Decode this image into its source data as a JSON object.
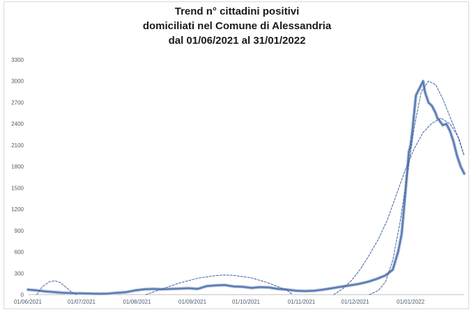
{
  "chart_data": {
    "type": "line",
    "title_lines": [
      "Trend n° cittadini positivi",
      "domiciliati nel Comune di Alessandria",
      "dal 01/06/2021 al 31/01/2022"
    ],
    "xlabel": "",
    "ylabel": "",
    "ylim": [
      0,
      3300
    ],
    "y_ticks": [
      0,
      300,
      600,
      900,
      1200,
      1500,
      1800,
      2100,
      2400,
      2700,
      3000,
      3300
    ],
    "x_tick_labels": [
      "01/06/2021",
      "01/07/2021",
      "01/08/2021",
      "01/09/2021",
      "01/10/2021",
      "01/11/2021",
      "01/12/2021",
      "01/01/2022"
    ],
    "x_tick_day_index": [
      0,
      30,
      61,
      92,
      122,
      153,
      183,
      214
    ],
    "x_range_days": [
      0,
      244
    ],
    "grid": false,
    "legend": "none",
    "series": [
      {
        "kind": "data",
        "color": "#5b7bb4",
        "x": [
          0,
          5,
          10,
          15,
          20,
          25,
          30,
          35,
          40,
          45,
          50,
          55,
          60,
          65,
          70,
          75,
          80,
          85,
          90,
          95,
          100,
          105,
          110,
          115,
          120,
          125,
          130,
          135,
          140,
          145,
          150,
          155,
          160,
          165,
          170,
          175,
          180,
          185,
          190,
          195,
          200,
          204,
          207,
          209,
          211,
          213,
          214,
          215,
          217,
          219,
          221,
          222,
          224,
          226,
          228,
          229,
          230,
          232,
          234,
          236,
          238,
          240,
          242,
          244
        ],
        "y": [
          70,
          60,
          45,
          35,
          25,
          20,
          18,
          15,
          12,
          15,
          25,
          35,
          60,
          75,
          80,
          75,
          80,
          85,
          90,
          80,
          120,
          130,
          135,
          115,
          110,
          95,
          105,
          100,
          80,
          70,
          55,
          50,
          55,
          70,
          90,
          110,
          130,
          150,
          180,
          220,
          270,
          350,
          600,
          850,
          1400,
          2000,
          2100,
          2300,
          2800,
          2900,
          3000,
          2850,
          2700,
          2650,
          2550,
          2480,
          2450,
          2380,
          2400,
          2300,
          2150,
          1950,
          1800,
          1700
        ]
      },
      {
        "kind": "trendline",
        "style": "dashed",
        "color": "#3c5f9e",
        "x": [
          5,
          8,
          12,
          15,
          18,
          21,
          24,
          27
        ],
        "y": [
          0,
          110,
          180,
          195,
          170,
          110,
          45,
          0
        ]
      },
      {
        "kind": "trendline",
        "style": "dashed",
        "color": "#3c5f9e",
        "x": [
          66,
          75,
          85,
          95,
          105,
          110,
          115,
          125,
          135,
          145,
          148
        ],
        "y": [
          0,
          80,
          165,
          230,
          268,
          275,
          270,
          235,
          160,
          60,
          0
        ]
      },
      {
        "kind": "trendline",
        "style": "dashed",
        "color": "#3c5f9e",
        "x": [
          171,
          176,
          181,
          186,
          191,
          196,
          201,
          206,
          211,
          216,
          221,
          226,
          231,
          236,
          241,
          244
        ],
        "y": [
          0,
          80,
          200,
          360,
          560,
          780,
          1050,
          1400,
          1750,
          2050,
          2280,
          2410,
          2480,
          2400,
          2200,
          1950
        ]
      },
      {
        "kind": "trendline",
        "style": "dashed",
        "color": "#3c5f9e",
        "x": [
          191,
          196,
          200,
          204,
          208,
          212,
          216,
          220,
          224,
          228,
          232,
          236,
          240,
          244
        ],
        "y": [
          0,
          60,
          180,
          480,
          1000,
          1650,
          2350,
          2850,
          3000,
          2950,
          2750,
          2500,
          2250,
          1950
        ]
      }
    ]
  }
}
